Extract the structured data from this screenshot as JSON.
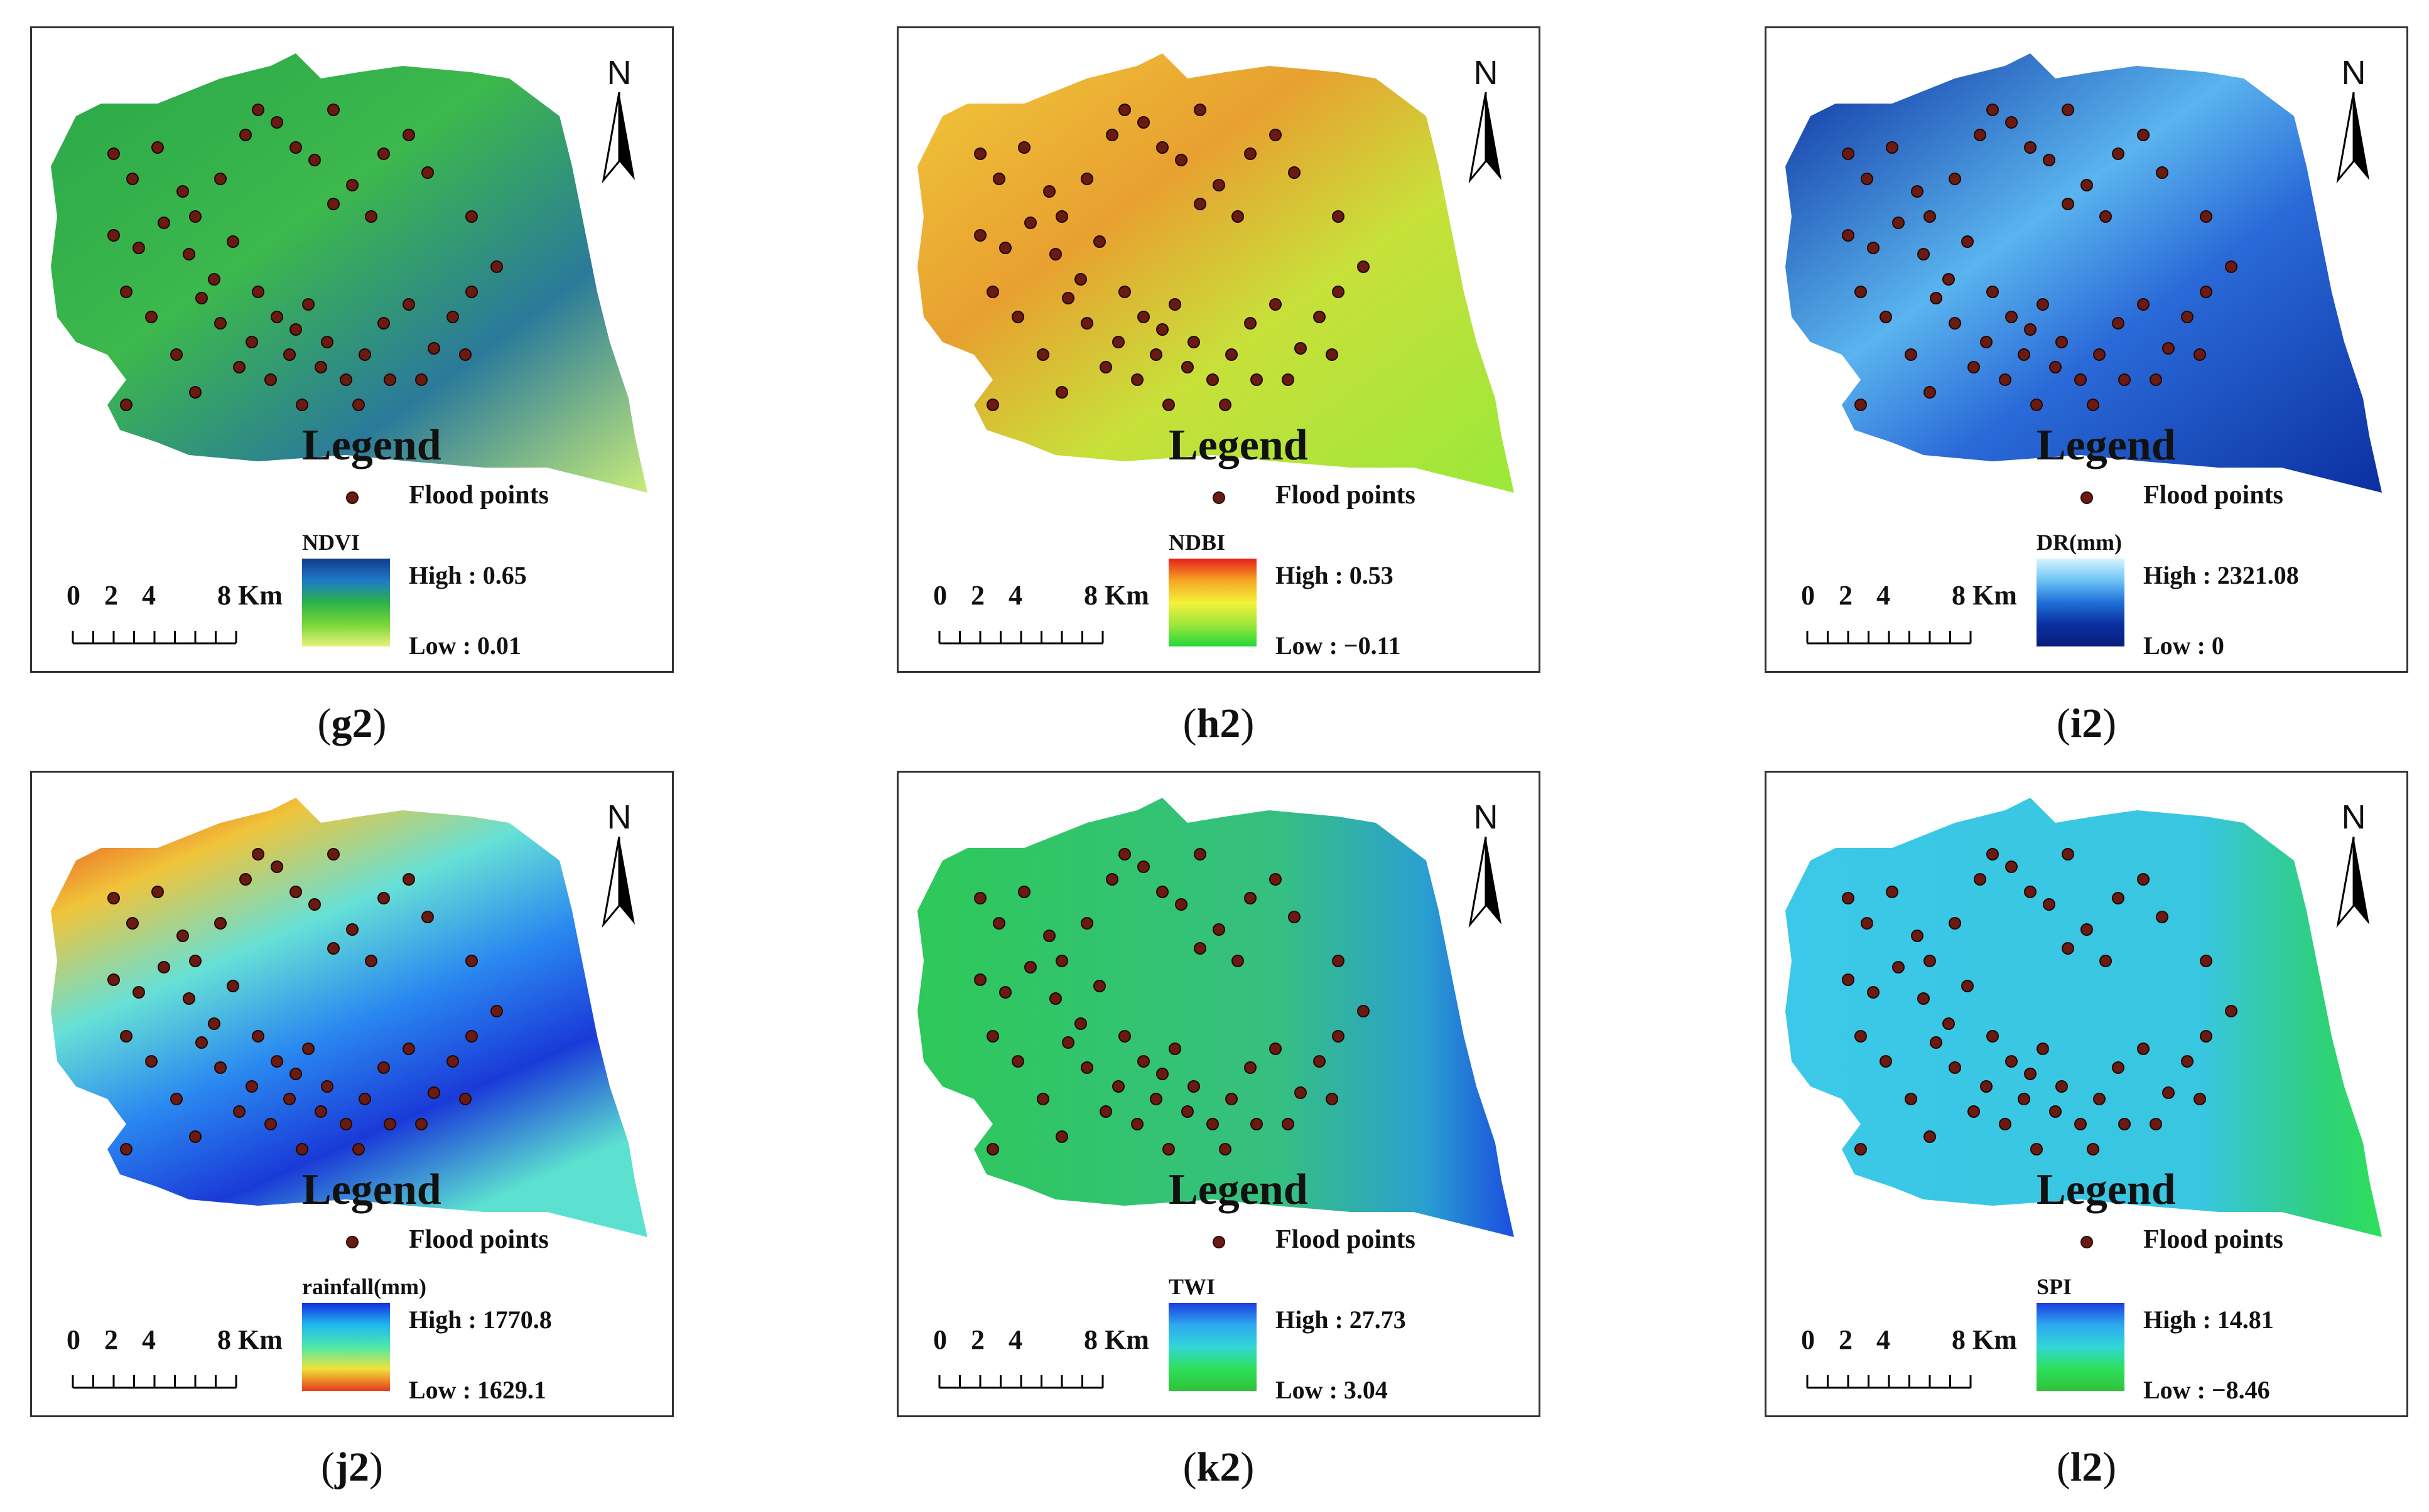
{
  "common": {
    "legend_title": "Legend",
    "flood_label": "Flood points",
    "north_label": "N",
    "scale_labels": [
      "0",
      "2",
      "4",
      "8",
      "Km"
    ]
  },
  "panels": [
    {
      "caption": "g2",
      "layer": "NDVI",
      "high": "High : 0.65",
      "low": "Low : 0.01",
      "ramp_colors": [
        "#143c8c",
        "#1e7ac8",
        "#2ab34a",
        "#7ad636",
        "#e6f27a"
      ],
      "map_palette": "ndvi"
    },
    {
      "caption": "h2",
      "layer": "NDBI",
      "high": "High : 0.53",
      "low": "Low : −0.11",
      "ramp_colors": [
        "#e8201c",
        "#f5a623",
        "#f5f23a",
        "#9ee63a",
        "#22d83a"
      ],
      "map_palette": "ndbi"
    },
    {
      "caption": "i2",
      "layer": "DR(mm)",
      "high": "High : 2321.08",
      "low": "Low : 0",
      "ramp_colors": [
        "#d8f4ff",
        "#6cc4f5",
        "#1f6fd9",
        "#0b2fa0",
        "#071d7a"
      ],
      "map_palette": "dr"
    },
    {
      "caption": "j2",
      "layer": "rainfall(mm)",
      "high": "High : 1770.8",
      "low": "Low : 1629.1",
      "ramp_colors": [
        "#1430e0",
        "#21b8f0",
        "#4ce8a8",
        "#f0e23a",
        "#e83a1c"
      ],
      "map_palette": "rain"
    },
    {
      "caption": "k2",
      "layer": "TWI",
      "high": "High : 27.73",
      "low": "Low : 3.04",
      "ramp_colors": [
        "#1b3ee0",
        "#2ea8f0",
        "#31d6d6",
        "#2ee05a",
        "#30c23a"
      ],
      "map_palette": "twi"
    },
    {
      "caption": "l2",
      "layer": "SPI",
      "high": "High : 14.81",
      "low": "Low : −8.46",
      "ramp_colors": [
        "#1b3ee0",
        "#2ea8f0",
        "#31d6d6",
        "#2ee05a",
        "#30c23a"
      ],
      "map_palette": "spi"
    }
  ]
}
